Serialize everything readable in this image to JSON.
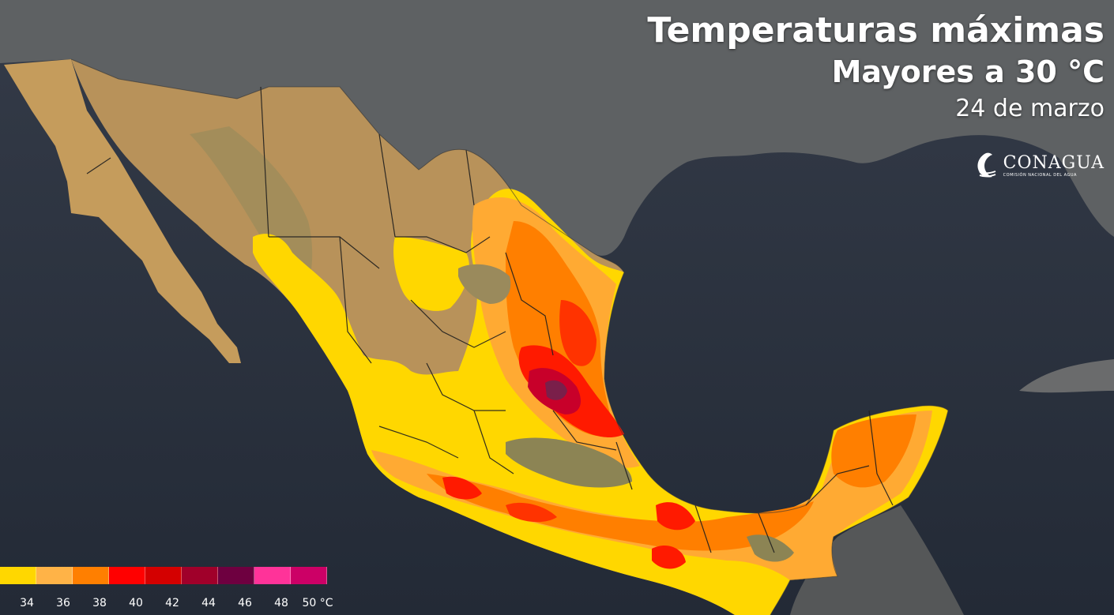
{
  "title": "Temperaturas máximas",
  "subtitle": "Mayores a 30 °C",
  "date": "24 de marzo",
  "logo": {
    "name": "CONAGUA",
    "tagline": "COMISIÓN NACIONAL DEL AGUA"
  },
  "legend": {
    "colors": [
      "#ffd700",
      "#ffb347",
      "#ff7f00",
      "#ff0000",
      "#d40000",
      "#a0002a",
      "#6e0040",
      "#ff3399",
      "#cc0066"
    ],
    "labels": [
      "34",
      "36",
      "38",
      "40",
      "42",
      "44",
      "46",
      "48",
      "50 °C"
    ]
  },
  "colors": {
    "ocean": "#2b3240",
    "land_base": "#c49a5a",
    "usa_land": "#5e5f60"
  }
}
